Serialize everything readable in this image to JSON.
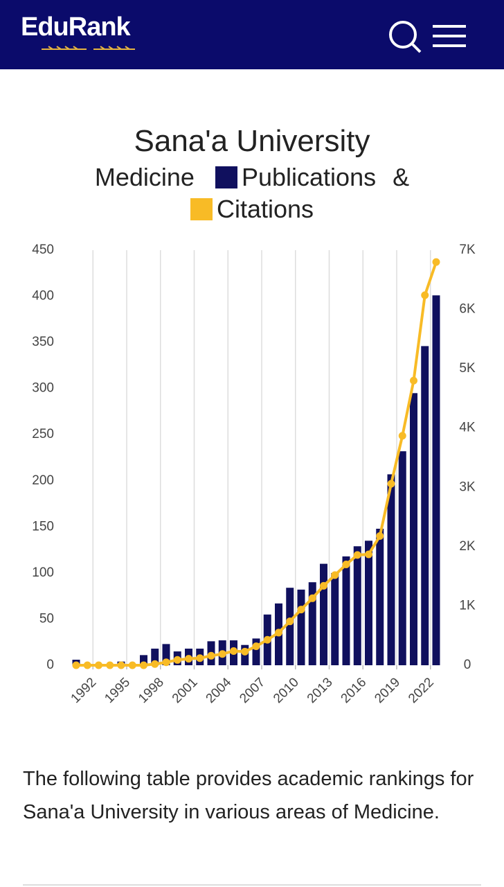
{
  "header": {
    "logo": "EduRank"
  },
  "chart_data": {
    "type": "bar",
    "title": "Sana'a University",
    "subtitle": "Medicine",
    "legend_joiner": "&",
    "categories": [
      null,
      "1992",
      null,
      null,
      "1995",
      null,
      null,
      "1998",
      null,
      null,
      "2001",
      null,
      null,
      "2004",
      null,
      null,
      "2007",
      null,
      null,
      "2010",
      null,
      null,
      "2013",
      null,
      null,
      "2016",
      null,
      null,
      "2019",
      null,
      null,
      "2022",
      null
    ],
    "series": [
      {
        "name": "Publications",
        "color": "#10105e",
        "type": "bar",
        "values": [
          6,
          0,
          0,
          0,
          4,
          0,
          11,
          18,
          23,
          15,
          18,
          18,
          26,
          27,
          27,
          22,
          29,
          55,
          67,
          84,
          82,
          90,
          110,
          100,
          118,
          129,
          135,
          148,
          207,
          232,
          295,
          346,
          401
        ]
      },
      {
        "name": "Citations",
        "color": "#f8bb26",
        "type": "line",
        "axis": "y2",
        "values": [
          0,
          0,
          0,
          0,
          0,
          0,
          0,
          20,
          50,
          90,
          110,
          120,
          160,
          190,
          240,
          230,
          320,
          430,
          550,
          740,
          940,
          1130,
          1340,
          1520,
          1700,
          1860,
          1870,
          2180,
          3060,
          3870,
          4800,
          6240,
          6800
        ]
      }
    ],
    "ylim": [
      0,
      450
    ],
    "yticks": [
      0,
      50,
      100,
      150,
      200,
      250,
      300,
      350,
      400,
      450
    ],
    "y2lim": [
      0,
      7000
    ],
    "y2ticks": [
      0,
      {
        "value": 1000,
        "label": "1K"
      },
      {
        "value": 2000,
        "label": "2K"
      },
      {
        "value": 3000,
        "label": "3K"
      },
      {
        "value": 4000,
        "label": "4K"
      },
      {
        "value": 5000,
        "label": "5K"
      },
      {
        "value": 6000,
        "label": "6K"
      },
      {
        "value": 7000,
        "label": "7K"
      }
    ],
    "grid": true
  },
  "paragraph": "The following table provides academic rankings for Sana'a University in various areas of Medicine."
}
